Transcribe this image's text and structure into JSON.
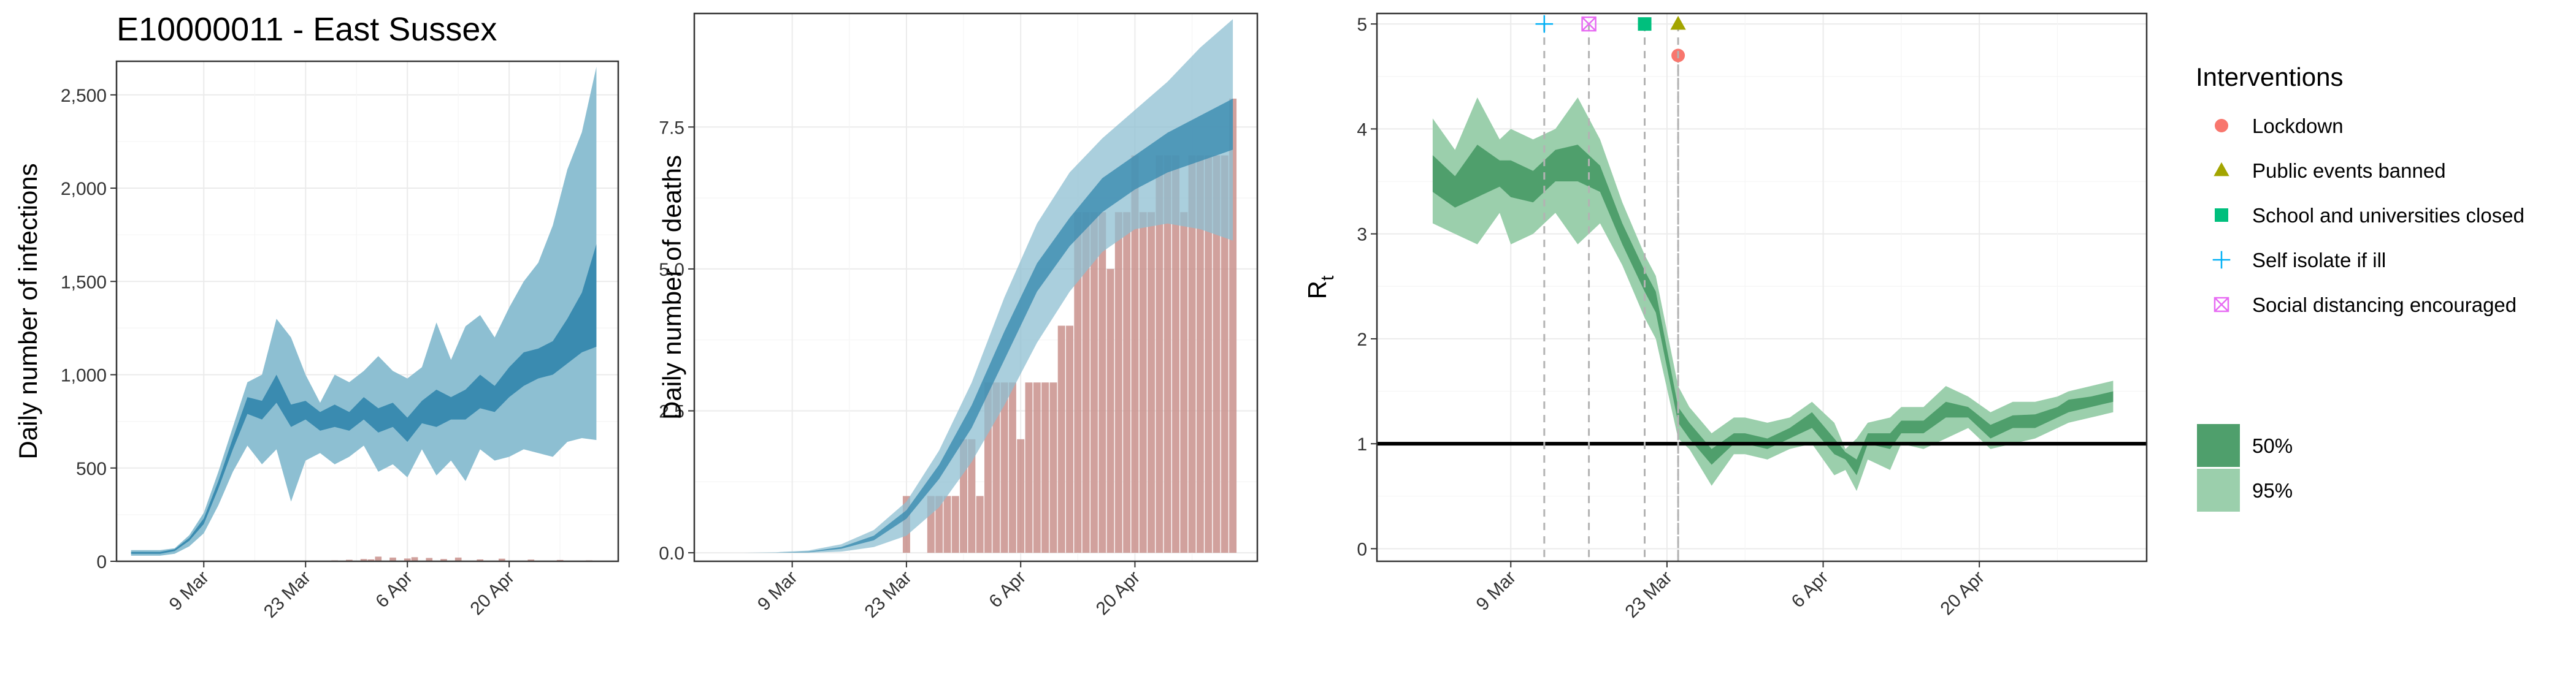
{
  "colors": {
    "infections_ci95": "#8dbfd2",
    "infections_ci50": "#3a8bb0",
    "deaths_bar": "#c9908c",
    "rt_ci95": "#9bcfac",
    "rt_ci50": "#4f9f6c",
    "lockdown": "#f8766d",
    "public_events": "#a3a500",
    "schools": "#00bf7d",
    "self_isolate": "#00b0f6",
    "social_distancing": "#e76bf3"
  },
  "chart_data": [
    {
      "type": "area",
      "title": "E10000011 - East Sussex",
      "xlabel": "",
      "ylabel": "Daily number of infections",
      "x_ticks": [
        "9 Mar",
        "23 Mar",
        "6 Apr",
        "20 Apr"
      ],
      "x_tick_dates": [
        "2020-03-09",
        "2020-03-23",
        "2020-04-06",
        "2020-04-20"
      ],
      "y_ticks": [
        "0",
        "500",
        "1,000",
        "1,500",
        "2,000",
        "2,500"
      ],
      "y_tick_values": [
        0,
        500,
        1000,
        1500,
        2000,
        2500
      ],
      "xlim": [
        "2020-02-26",
        "2020-05-05"
      ],
      "ylim": [
        0,
        2680
      ],
      "grid": true,
      "x": [
        "2020-02-28",
        "2020-03-01",
        "2020-03-03",
        "2020-03-05",
        "2020-03-07",
        "2020-03-09",
        "2020-03-11",
        "2020-03-13",
        "2020-03-15",
        "2020-03-17",
        "2020-03-19",
        "2020-03-21",
        "2020-03-23",
        "2020-03-25",
        "2020-03-27",
        "2020-03-29",
        "2020-03-31",
        "2020-04-02",
        "2020-04-04",
        "2020-04-06",
        "2020-04-08",
        "2020-04-10",
        "2020-04-12",
        "2020-04-14",
        "2020-04-16",
        "2020-04-18",
        "2020-04-20",
        "2020-04-22",
        "2020-04-24",
        "2020-04-26",
        "2020-04-28",
        "2020-04-30",
        "2020-05-02"
      ],
      "series": [
        {
          "name": "95%",
          "lower": [
            30,
            30,
            30,
            40,
            80,
            150,
            300,
            480,
            620,
            520,
            600,
            320,
            540,
            580,
            520,
            560,
            620,
            480,
            520,
            450,
            600,
            460,
            540,
            430,
            600,
            540,
            560,
            600,
            580,
            560,
            640,
            660,
            650
          ],
          "upper": [
            60,
            60,
            60,
            70,
            140,
            260,
            480,
            720,
            960,
            1000,
            1300,
            1200,
            1000,
            850,
            1000,
            960,
            1020,
            1100,
            1020,
            980,
            1040,
            1280,
            1080,
            1260,
            1320,
            1200,
            1360,
            1500,
            1600,
            1800,
            2100,
            2300,
            2650
          ]
        },
        {
          "name": "50%",
          "lower": [
            40,
            40,
            40,
            55,
            110,
            200,
            390,
            600,
            790,
            760,
            850,
            720,
            760,
            700,
            720,
            700,
            760,
            690,
            720,
            640,
            740,
            720,
            760,
            760,
            820,
            800,
            880,
            940,
            980,
            1000,
            1060,
            1120,
            1150
          ],
          "upper": [
            50,
            50,
            50,
            65,
            125,
            230,
            430,
            660,
            880,
            860,
            1000,
            840,
            860,
            800,
            840,
            800,
            880,
            820,
            850,
            770,
            860,
            920,
            880,
            920,
            1000,
            940,
            1040,
            1120,
            1140,
            1180,
            1300,
            1440,
            1700
          ]
        }
      ],
      "bars": {
        "x": [
          "2020-03-27",
          "2020-03-29",
          "2020-03-31",
          "2020-04-01",
          "2020-04-02",
          "2020-04-04",
          "2020-04-06",
          "2020-04-07",
          "2020-04-09",
          "2020-04-11",
          "2020-04-13",
          "2020-04-16",
          "2020-04-19",
          "2020-04-23",
          "2020-04-27",
          "2020-05-01"
        ],
        "values": [
          5,
          8,
          12,
          10,
          25,
          20,
          15,
          22,
          18,
          12,
          20,
          10,
          14,
          9,
          7,
          5
        ]
      }
    },
    {
      "type": "area",
      "title": "",
      "xlabel": "",
      "ylabel": "Daily number of deaths",
      "x_ticks": [
        "9 Mar",
        "23 Mar",
        "6 Apr",
        "20 Apr"
      ],
      "x_tick_dates": [
        "2020-03-09",
        "2020-03-23",
        "2020-04-06",
        "2020-04-20"
      ],
      "y_ticks": [
        "0.0",
        "2.5",
        "5.0",
        "7.5"
      ],
      "y_tick_values": [
        0,
        2.5,
        5,
        7.5
      ],
      "xlim": [
        "2020-02-26",
        "2020-05-05"
      ],
      "ylim": [
        -0.15,
        9.5
      ],
      "grid": true,
      "x": [
        "2020-02-28",
        "2020-03-03",
        "2020-03-07",
        "2020-03-11",
        "2020-03-15",
        "2020-03-19",
        "2020-03-23",
        "2020-03-27",
        "2020-03-31",
        "2020-04-04",
        "2020-04-08",
        "2020-04-12",
        "2020-04-16",
        "2020-04-20",
        "2020-04-24",
        "2020-04-28",
        "2020-05-02"
      ],
      "series": [
        {
          "name": "95%",
          "lower": [
            0,
            0,
            0,
            0,
            0.02,
            0.1,
            0.3,
            0.8,
            1.6,
            2.6,
            3.7,
            4.6,
            5.3,
            5.7,
            5.8,
            5.7,
            5.5
          ],
          "upper": [
            0,
            0,
            0.01,
            0.04,
            0.15,
            0.4,
            0.9,
            1.8,
            3.0,
            4.5,
            5.8,
            6.7,
            7.3,
            7.8,
            8.3,
            8.9,
            9.4
          ]
        },
        {
          "name": "50%",
          "lower": [
            0,
            0,
            0,
            0.01,
            0.07,
            0.22,
            0.6,
            1.3,
            2.2,
            3.4,
            4.6,
            5.4,
            6.0,
            6.4,
            6.7,
            6.9,
            7.1
          ],
          "upper": [
            0,
            0,
            0,
            0.02,
            0.1,
            0.3,
            0.75,
            1.55,
            2.6,
            3.9,
            5.1,
            5.9,
            6.6,
            7.0,
            7.4,
            7.7,
            8.0
          ]
        }
      ],
      "bars": {
        "x": [
          "2020-02-29",
          "2020-03-01",
          "2020-03-02",
          "2020-03-03",
          "2020-03-04",
          "2020-03-05",
          "2020-03-06",
          "2020-03-07",
          "2020-03-08",
          "2020-03-09",
          "2020-03-10",
          "2020-03-11",
          "2020-03-12",
          "2020-03-13",
          "2020-03-14",
          "2020-03-15",
          "2020-03-16",
          "2020-03-17",
          "2020-03-18",
          "2020-03-19",
          "2020-03-20",
          "2020-03-21",
          "2020-03-22",
          "2020-03-23",
          "2020-03-24",
          "2020-03-25",
          "2020-03-26",
          "2020-03-27",
          "2020-03-28",
          "2020-03-29",
          "2020-03-30",
          "2020-03-31",
          "2020-04-01",
          "2020-04-02",
          "2020-04-03",
          "2020-04-04",
          "2020-04-05",
          "2020-04-06",
          "2020-04-07",
          "2020-04-08",
          "2020-04-09",
          "2020-04-10",
          "2020-04-11",
          "2020-04-12",
          "2020-04-13",
          "2020-04-14",
          "2020-04-15",
          "2020-04-16",
          "2020-04-17",
          "2020-04-18",
          "2020-04-19",
          "2020-04-20",
          "2020-04-21",
          "2020-04-22",
          "2020-04-23",
          "2020-04-24",
          "2020-04-25",
          "2020-04-26",
          "2020-04-27",
          "2020-04-28",
          "2020-04-29",
          "2020-04-30",
          "2020-05-01",
          "2020-05-02"
        ],
        "values": [
          0,
          0,
          0,
          0,
          0,
          0,
          0,
          0,
          0,
          0,
          0,
          0,
          0,
          0,
          0,
          0,
          0,
          0,
          0,
          0,
          0,
          0,
          0,
          1,
          0,
          0,
          1,
          1,
          1,
          1,
          2,
          2,
          1,
          3,
          3,
          3,
          3,
          2,
          3,
          3,
          3,
          3,
          4,
          4,
          6,
          6,
          6,
          6,
          5,
          6,
          6,
          7,
          6,
          6,
          7,
          7,
          7,
          6,
          7,
          7,
          7,
          7,
          7,
          8
        ]
      }
    },
    {
      "type": "area",
      "title": "",
      "xlabel": "",
      "ylabel": "R",
      "ylabel_subscript": "t",
      "x_ticks": [
        "9 Mar",
        "23 Mar",
        "6 Apr",
        "20 Apr"
      ],
      "x_tick_dates": [
        "2020-03-09",
        "2020-03-23",
        "2020-04-06",
        "2020-04-20"
      ],
      "y_ticks": [
        "0",
        "1",
        "2",
        "3",
        "4",
        "5"
      ],
      "y_tick_values": [
        0,
        1,
        2,
        3,
        4,
        5
      ],
      "xlim": [
        "2020-02-26",
        "2020-05-05"
      ],
      "ylim": [
        -0.12,
        5.1
      ],
      "grid": true,
      "reference_line": 1,
      "x": [
        "2020-03-02",
        "2020-03-04",
        "2020-03-06",
        "2020-03-08",
        "2020-03-09",
        "2020-03-11",
        "2020-03-13",
        "2020-03-15",
        "2020-03-17",
        "2020-03-19",
        "2020-03-21",
        "2020-03-22",
        "2020-03-24",
        "2020-03-25",
        "2020-03-27",
        "2020-03-29",
        "2020-03-30",
        "2020-04-01",
        "2020-04-03",
        "2020-04-05",
        "2020-04-07",
        "2020-04-08",
        "2020-04-09",
        "2020-04-10",
        "2020-04-12",
        "2020-04-13",
        "2020-04-15",
        "2020-04-17",
        "2020-04-19",
        "2020-04-21",
        "2020-04-23",
        "2020-04-25",
        "2020-04-27",
        "2020-04-28",
        "2020-04-30",
        "2020-05-02"
      ],
      "series": [
        {
          "name": "95%",
          "lower": [
            3.1,
            3.0,
            2.9,
            3.2,
            2.9,
            3.0,
            3.2,
            2.9,
            3.1,
            2.7,
            2.2,
            2.0,
            1.05,
            0.95,
            0.6,
            0.9,
            0.9,
            0.85,
            0.95,
            1.0,
            0.7,
            0.75,
            0.55,
            0.85,
            0.75,
            1.0,
            0.95,
            1.05,
            1.15,
            0.95,
            1.0,
            1.05,
            1.15,
            1.2,
            1.25,
            1.3
          ],
          "upper": [
            4.1,
            3.8,
            4.3,
            3.9,
            4.0,
            3.9,
            4.0,
            4.3,
            3.9,
            3.3,
            2.8,
            2.6,
            1.55,
            1.35,
            1.1,
            1.25,
            1.25,
            1.2,
            1.25,
            1.4,
            1.2,
            0.95,
            1.05,
            1.2,
            1.25,
            1.35,
            1.35,
            1.55,
            1.45,
            1.3,
            1.4,
            1.4,
            1.45,
            1.5,
            1.55,
            1.6
          ]
        },
        {
          "name": "50%",
          "lower": [
            3.4,
            3.25,
            3.35,
            3.45,
            3.35,
            3.3,
            3.5,
            3.5,
            3.4,
            2.9,
            2.45,
            2.25,
            1.2,
            1.05,
            0.8,
            1.0,
            1.0,
            0.95,
            1.05,
            1.15,
            0.9,
            0.85,
            0.7,
            1.0,
            0.95,
            1.1,
            1.1,
            1.25,
            1.25,
            1.05,
            1.15,
            1.15,
            1.25,
            1.3,
            1.35,
            1.4
          ],
          "upper": [
            3.75,
            3.55,
            3.85,
            3.7,
            3.7,
            3.6,
            3.8,
            3.85,
            3.65,
            3.1,
            2.65,
            2.45,
            1.35,
            1.2,
            0.95,
            1.1,
            1.1,
            1.05,
            1.15,
            1.3,
            1.05,
            0.92,
            0.85,
            1.1,
            1.1,
            1.22,
            1.22,
            1.4,
            1.35,
            1.18,
            1.27,
            1.28,
            1.35,
            1.42,
            1.45,
            1.5
          ]
        }
      ]
    }
  ],
  "interventions": {
    "title": "Interventions",
    "items": [
      {
        "label": "Lockdown",
        "date": "2020-03-24",
        "shape": "circle",
        "color": "#f8766d",
        "level": 4.7
      },
      {
        "label": "Public events banned",
        "date": "2020-03-24",
        "shape": "triangle",
        "color": "#a3a500",
        "level": 5.0
      },
      {
        "label": "School and universities closed",
        "date": "2020-03-21",
        "shape": "square",
        "color": "#00bf7d",
        "level": 5.0
      },
      {
        "label": "Self isolate if ill",
        "date": "2020-03-12",
        "shape": "plus",
        "color": "#00b0f6",
        "level": 5.0
      },
      {
        "label": "Social distancing encouraged",
        "date": "2020-03-16",
        "shape": "squarecross",
        "color": "#e76bf3",
        "level": 5.0
      }
    ]
  },
  "interval_legend": {
    "items": [
      {
        "label": "50%",
        "color": "#4f9f6c"
      },
      {
        "label": "95%",
        "color": "#9bcfac"
      }
    ]
  }
}
